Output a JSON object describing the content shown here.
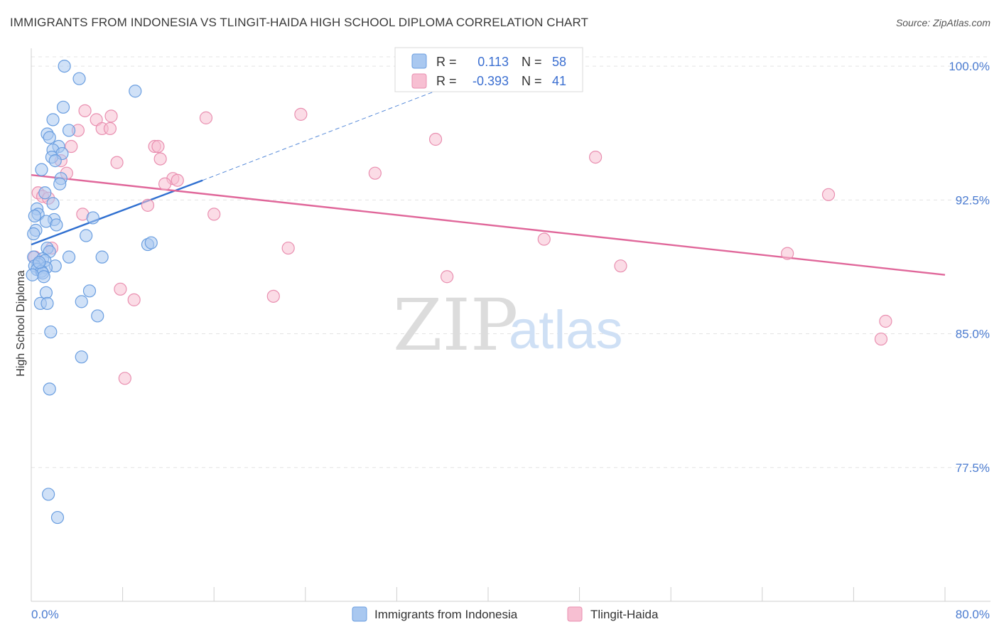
{
  "title": "IMMIGRANTS FROM INDONESIA VS TLINGIT-HAIDA HIGH SCHOOL DIPLOMA CORRELATION CHART",
  "source": "Source: ZipAtlas.com",
  "watermark": {
    "zip": "ZIP",
    "atlas": "atlas"
  },
  "colors": {
    "indonesia_fill": "#a9c8f0",
    "indonesia_stroke": "#6a9ee0",
    "indonesia_line": "#2f6fd0",
    "tlingit_fill": "#f7bfd2",
    "tlingit_stroke": "#e98fb0",
    "tlingit_line": "#e0679a",
    "grid": "#e4e4e4",
    "axis_text": "#4a7bd0"
  },
  "stats_box": {
    "rows": [
      {
        "r_label": "R =",
        "r_value": "0.113",
        "n_label": "N =",
        "n_value": "58"
      },
      {
        "r_label": "R =",
        "r_value": "-0.393",
        "n_label": "N =",
        "n_value": "41"
      }
    ]
  },
  "chart_data": {
    "type": "scatter",
    "title": "IMMIGRANTS FROM INDONESIA VS TLINGIT-HAIDA HIGH SCHOOL DIPLOMA CORRELATION CHART",
    "xlabel": "",
    "ylabel": "High School Diploma",
    "xlim": [
      0,
      80
    ],
    "ylim": [
      70.0,
      101.0
    ],
    "x_tick_labels": [
      "0.0%",
      "80.0%"
    ],
    "y_ticks": [
      77.5,
      85.0,
      92.5,
      100.0
    ],
    "y_tick_labels": [
      "77.5%",
      "85.0%",
      "92.5%",
      "100.0%"
    ],
    "grid": true,
    "legend_position": "bottom-center",
    "series": [
      {
        "name": "Immigrants from Indonesia",
        "color": "#a9c8f0",
        "trend": {
          "x": [
            0.0,
            15.0
          ],
          "y": [
            90.0,
            93.6
          ],
          "extended_x": [
            15.0,
            37.0
          ],
          "extended_y": [
            93.6,
            99.0
          ]
        },
        "points": [
          [
            2.9,
            100.0
          ],
          [
            4.2,
            99.3
          ],
          [
            9.1,
            98.6
          ],
          [
            2.8,
            97.7
          ],
          [
            1.9,
            97.0
          ],
          [
            3.3,
            96.4
          ],
          [
            1.4,
            96.2
          ],
          [
            1.6,
            96.0
          ],
          [
            2.4,
            95.5
          ],
          [
            1.9,
            95.3
          ],
          [
            2.7,
            95.1
          ],
          [
            1.8,
            94.9
          ],
          [
            2.1,
            94.7
          ],
          [
            0.9,
            94.2
          ],
          [
            2.6,
            93.7
          ],
          [
            2.5,
            93.4
          ],
          [
            1.2,
            92.9
          ],
          [
            1.9,
            92.3
          ],
          [
            0.5,
            92.0
          ],
          [
            0.6,
            91.7
          ],
          [
            0.3,
            91.6
          ],
          [
            2.0,
            91.4
          ],
          [
            1.3,
            91.3
          ],
          [
            2.2,
            91.1
          ],
          [
            0.4,
            90.8
          ],
          [
            0.2,
            90.6
          ],
          [
            4.8,
            90.5
          ],
          [
            5.4,
            91.5
          ],
          [
            10.2,
            90.0
          ],
          [
            10.5,
            90.1
          ],
          [
            1.4,
            89.8
          ],
          [
            1.6,
            89.6
          ],
          [
            3.3,
            89.3
          ],
          [
            6.2,
            89.3
          ],
          [
            0.2,
            89.3
          ],
          [
            1.0,
            89.2
          ],
          [
            1.2,
            89.1
          ],
          [
            0.6,
            88.9
          ],
          [
            0.3,
            88.8
          ],
          [
            2.1,
            88.8
          ],
          [
            1.3,
            88.7
          ],
          [
            0.5,
            88.6
          ],
          [
            0.9,
            88.5
          ],
          [
            1.0,
            88.4
          ],
          [
            0.1,
            88.3
          ],
          [
            5.1,
            87.4
          ],
          [
            1.3,
            87.3
          ],
          [
            4.4,
            86.8
          ],
          [
            0.8,
            86.7
          ],
          [
            1.4,
            86.7
          ],
          [
            5.8,
            86.0
          ],
          [
            1.7,
            85.1
          ],
          [
            4.4,
            83.7
          ],
          [
            1.6,
            81.9
          ],
          [
            1.5,
            76.0
          ],
          [
            2.3,
            74.7
          ],
          [
            1.1,
            88.2
          ],
          [
            0.7,
            89.0
          ]
        ]
      },
      {
        "name": "Tlingit-Haida",
        "color": "#f7bfd2",
        "trend": {
          "x": [
            0.0,
            80.0
          ],
          "y": [
            93.9,
            88.3
          ]
        },
        "points": [
          [
            4.7,
            97.5
          ],
          [
            7.0,
            97.2
          ],
          [
            15.3,
            97.1
          ],
          [
            23.6,
            97.3
          ],
          [
            5.7,
            97.0
          ],
          [
            4.1,
            96.4
          ],
          [
            6.2,
            96.5
          ],
          [
            6.9,
            96.5
          ],
          [
            35.4,
            95.9
          ],
          [
            3.5,
            95.5
          ],
          [
            10.8,
            95.5
          ],
          [
            11.1,
            95.5
          ],
          [
            7.5,
            94.6
          ],
          [
            2.6,
            94.7
          ],
          [
            11.3,
            94.8
          ],
          [
            49.4,
            94.9
          ],
          [
            30.1,
            94.0
          ],
          [
            3.1,
            94.0
          ],
          [
            12.4,
            93.7
          ],
          [
            12.8,
            93.6
          ],
          [
            0.6,
            92.9
          ],
          [
            1.0,
            92.7
          ],
          [
            1.5,
            92.6
          ],
          [
            10.2,
            92.2
          ],
          [
            69.8,
            92.8
          ],
          [
            4.5,
            91.7
          ],
          [
            16.0,
            91.7
          ],
          [
            44.9,
            90.3
          ],
          [
            22.5,
            89.8
          ],
          [
            1.8,
            89.8
          ],
          [
            66.2,
            89.5
          ],
          [
            51.6,
            88.8
          ],
          [
            36.4,
            88.2
          ],
          [
            0.3,
            89.3
          ],
          [
            7.8,
            87.5
          ],
          [
            21.2,
            87.1
          ],
          [
            9.0,
            86.9
          ],
          [
            74.8,
            85.7
          ],
          [
            74.4,
            84.7
          ],
          [
            8.2,
            82.5
          ],
          [
            11.7,
            93.4
          ]
        ]
      }
    ]
  }
}
